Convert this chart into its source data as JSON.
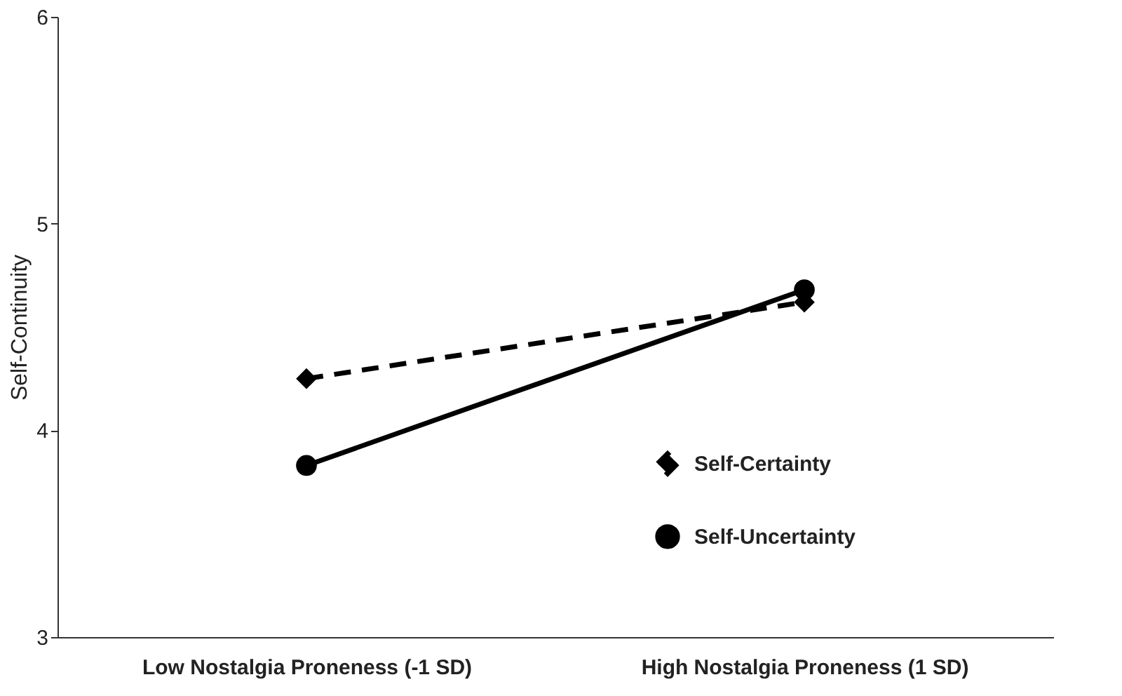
{
  "chart_data": {
    "type": "line",
    "ylabel": "Self-Continuity",
    "categories": [
      "Low Nostalgia Proneness (-1 SD)",
      "High Nostalgia Proneness (1 SD)"
    ],
    "series": [
      {
        "name": "Self-Certainty",
        "color": "#000000",
        "values": [
          4.25,
          4.62
        ],
        "marker": "diamond",
        "line_style": "dashed"
      },
      {
        "name": "Self-Uncertainty",
        "color": "#000000",
        "values": [
          3.83,
          4.68
        ],
        "marker": "circle",
        "line_style": "solid"
      }
    ],
    "ylim": [
      3,
      6
    ],
    "yticks": [
      3,
      4,
      5,
      6
    ],
    "grid": false,
    "legend": "bottom right"
  }
}
